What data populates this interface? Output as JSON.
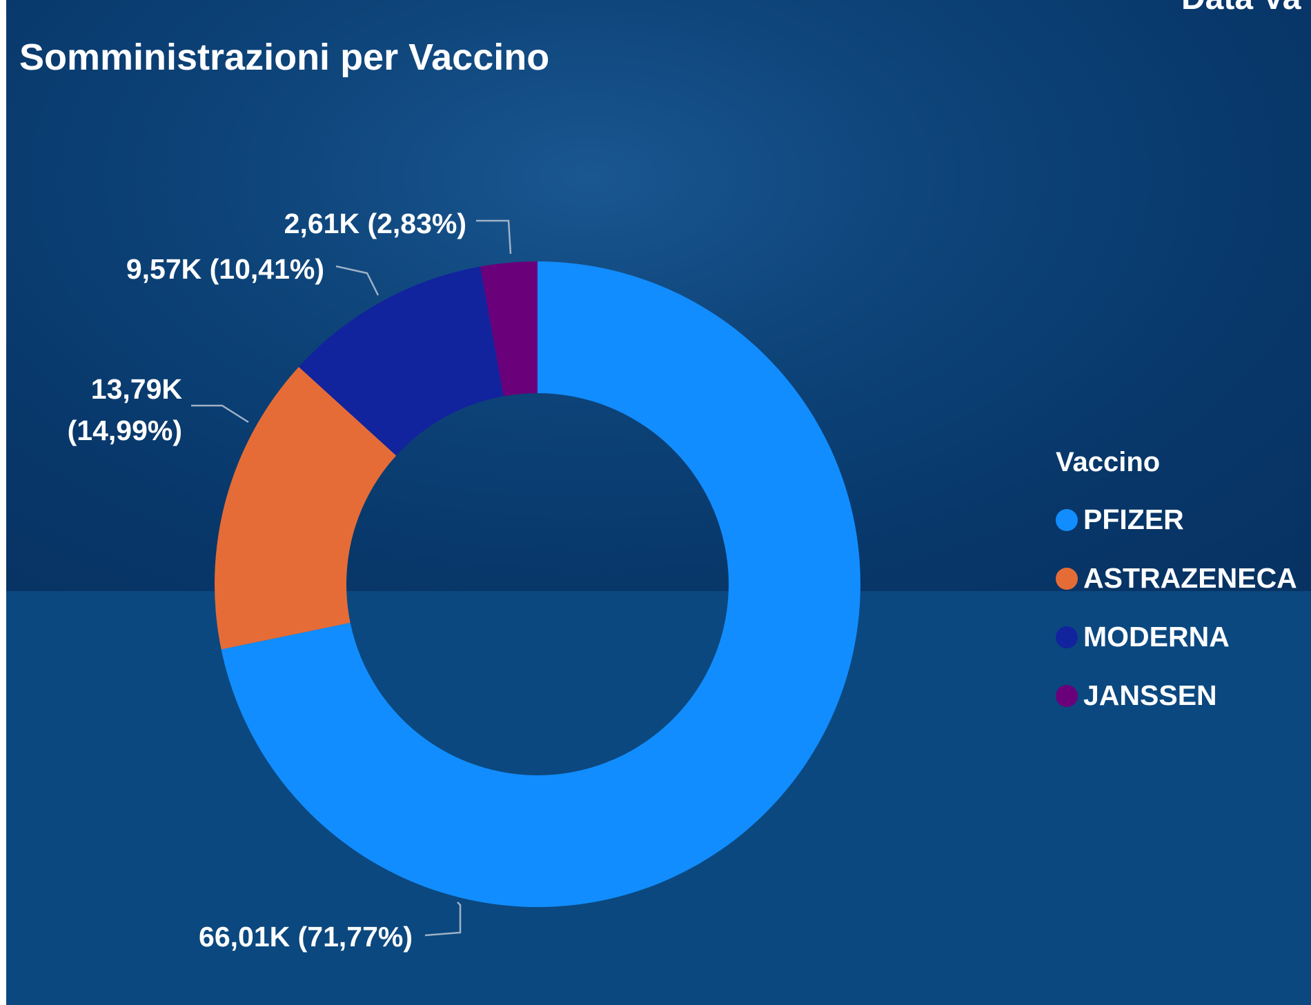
{
  "header": {
    "title": "Somministrazioni per Vaccino",
    "top_right_partial": "Data Va"
  },
  "chart_data": {
    "type": "pie",
    "donut": true,
    "title": "Somministrazioni per Vaccino",
    "legend_title": "Vaccino",
    "legend_position": "right",
    "slices": [
      {
        "name": "PFIZER",
        "value": 66010,
        "percent": 71.77,
        "label": "66,01K (71,77%)",
        "color": "#118dff"
      },
      {
        "name": "ASTRAZENECA",
        "value": 13790,
        "percent": 14.99,
        "label": "13,79K (14,99%)",
        "label_lines": [
          "13,79K",
          "(14,99%)"
        ],
        "color": "#e66c37"
      },
      {
        "name": "MODERNA",
        "value": 9570,
        "percent": 10.41,
        "label": "9,57K (10,41%)",
        "color": "#12239e"
      },
      {
        "name": "JANSSEN",
        "value": 2610,
        "percent": 2.83,
        "label": "2,61K (2,83%)",
        "color": "#6b007b"
      }
    ]
  }
}
